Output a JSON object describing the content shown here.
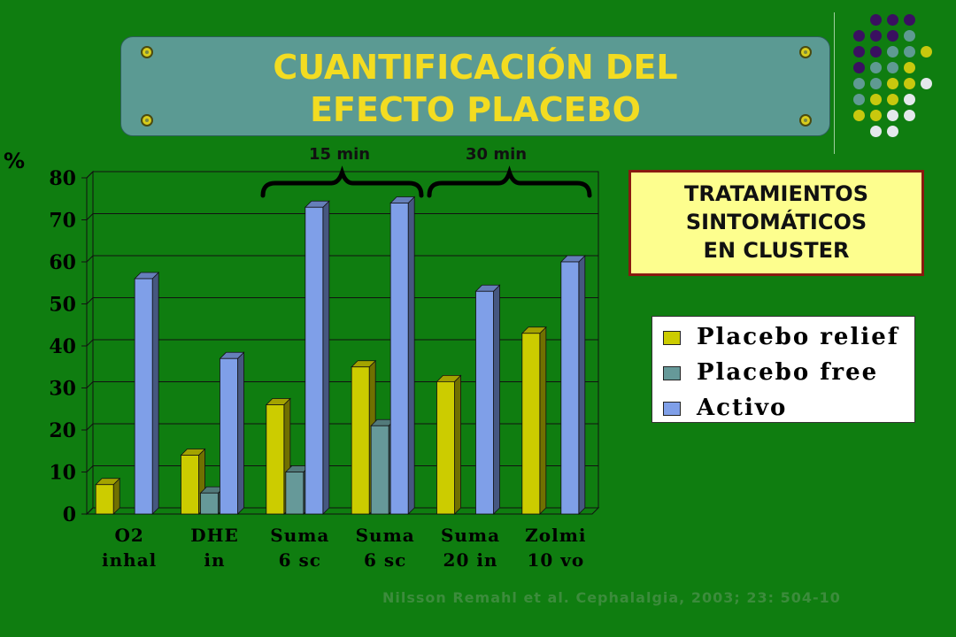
{
  "slide": {
    "title_line1": "CUANTIFICACIÓN DEL",
    "title_line2": "EFECTO PLACEBO",
    "box_lines": [
      "TRATAMIENTOS",
      "SINTOMÁTICOS",
      "EN CLUSTER"
    ],
    "citation": "Nilsson Remahl et al. Cephalalgia, 2003; 23: 504-10",
    "brace_labels": [
      "15 min",
      "30 min"
    ]
  },
  "chart_data": {
    "type": "bar",
    "title": "",
    "ylabel": "%",
    "xlabel": "",
    "ylim": [
      0,
      80
    ],
    "yticks": [
      0,
      10,
      20,
      30,
      40,
      50,
      60,
      70,
      80
    ],
    "grid": true,
    "legend_position": "right",
    "categories": [
      [
        "O2",
        "inhal"
      ],
      [
        "DHE",
        "in"
      ],
      [
        "Suma",
        "6 sc"
      ],
      [
        "Suma",
        "6 sc"
      ],
      [
        "Suma",
        "20 in"
      ],
      [
        "Zolmi",
        "10 vo"
      ]
    ],
    "series": [
      {
        "name": "Placebo relief",
        "color": "#cccc00",
        "values": [
          7,
          14,
          26,
          35,
          31.5,
          43
        ]
      },
      {
        "name": "Placebo free",
        "color": "#669999",
        "values": [
          0,
          5,
          10,
          21,
          0,
          0
        ]
      },
      {
        "name": "Activo",
        "color": "#7f9fe8",
        "values": [
          56,
          37,
          73,
          74,
          53,
          60
        ]
      }
    ]
  }
}
